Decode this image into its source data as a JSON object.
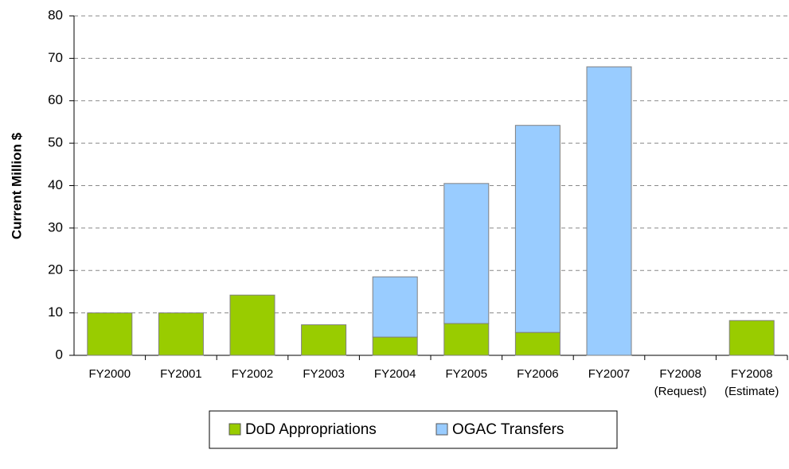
{
  "chart_data": {
    "type": "stacked_bar",
    "y_label": "Current Million $",
    "categories": [
      "FY2000",
      "FY2001",
      "FY2002",
      "FY2003",
      "FY2004",
      "FY2005",
      "FY2006",
      "FY2007",
      "FY2008\n(Request)",
      "FY2008\n(Estimate)"
    ],
    "series": [
      {
        "name": "DoD Appropriations",
        "color": "#99cc00",
        "values": [
          10,
          10,
          14.2,
          7.2,
          4.3,
          7.5,
          5.4,
          null,
          null,
          8.2
        ]
      },
      {
        "name": "OGAC Transfers",
        "color": "#99ccff",
        "values": [
          null,
          null,
          null,
          null,
          14.2,
          33,
          48.8,
          68,
          null,
          null
        ]
      }
    ],
    "ylim": [
      0,
      80
    ],
    "yticks": [
      0,
      10,
      20,
      30,
      40,
      50,
      60,
      70,
      80
    ],
    "grid": true,
    "legend": "bottom"
  }
}
